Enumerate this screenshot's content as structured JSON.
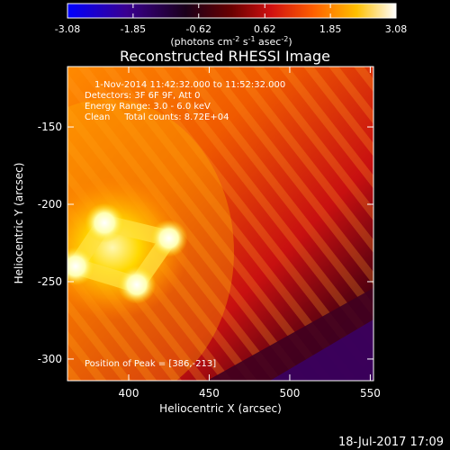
{
  "chart_data": {
    "type": "heatmap",
    "title": "Reconstructed RHESSI Image",
    "xlabel": "Heliocentric X (arcsec)",
    "ylabel": "Heliocentric Y (arcsec)",
    "xlim": [
      362,
      552
    ],
    "ylim": [
      -314,
      -111
    ],
    "xticks": [
      400,
      450,
      500,
      550
    ],
    "yticks": [
      -150,
      -200,
      -250,
      -300
    ],
    "colorbar": {
      "ticks": [
        "-3.08",
        "-1.85",
        "-0.62",
        "0.62",
        "1.85",
        "3.08"
      ],
      "label_prefix": "(photons cm",
      "label_exp1": "-2",
      "label_mid1": " s",
      "label_exp2": "-1",
      "label_mid2": " asec",
      "label_exp3": "-2",
      "label_suffix": ")",
      "range": [
        -3.08,
        3.08
      ],
      "colors": [
        "#0000ff",
        "#4b0082",
        "#000000",
        "#8b0000",
        "#ff0000",
        "#ff8c00",
        "#ffd700",
        "#ffffff"
      ]
    },
    "annotations": [
      "1-Nov-2014 11:42:32.000 to 11:52:32.000",
      "Detectors: 3F 6F 9F, Att 0",
      "Energy Range: 3.0 - 6.0 keV",
      "Clean     Total counts: 8.72E+04"
    ],
    "peak_label": "Position of Peak = [386,-213]",
    "source_ring": [
      {
        "x": 385,
        "y": -212,
        "value": 3.08
      },
      {
        "x": 367,
        "y": -240,
        "value": 2.9
      },
      {
        "x": 405,
        "y": -252,
        "value": 2.85
      },
      {
        "x": 425,
        "y": -222,
        "value": 2.7
      }
    ],
    "grid": false
  },
  "footer_timestamp": "18-Jul-2017 17:09"
}
